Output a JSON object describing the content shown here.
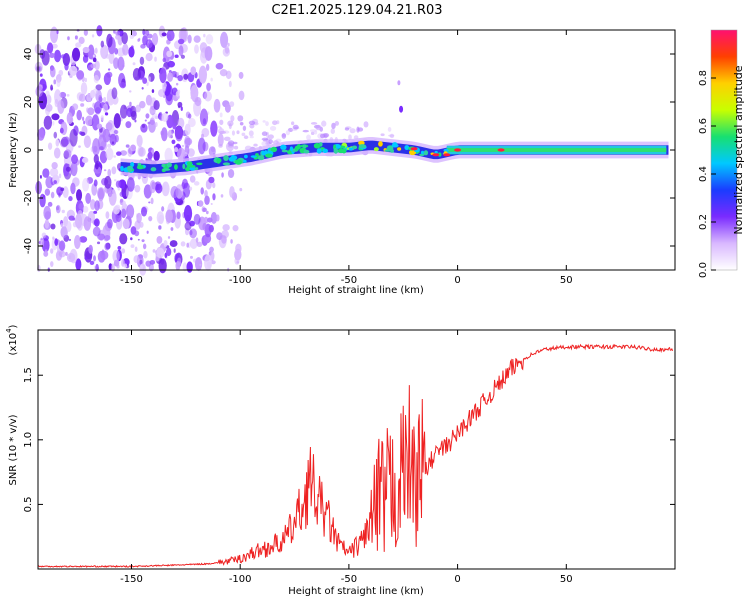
{
  "title": "C2E1.2025.129.04.21.R03",
  "chart_data": [
    {
      "type": "heatmap",
      "xlabel": "Height of straight line (km)",
      "ylabel": "Frequency (Hz)",
      "xlim": [
        -193,
        100
      ],
      "ylim": [
        -50,
        50
      ],
      "x_ticks": [
        -150,
        -100,
        -50,
        0,
        50
      ],
      "x_tick_labels": [
        "-150",
        "-100",
        "-50",
        "0",
        "50"
      ],
      "y_ticks": [
        -40,
        -20,
        0,
        20,
        40
      ],
      "y_tick_labels": [
        "-40",
        "-20",
        "0",
        "20",
        "40"
      ],
      "colorbar": {
        "label": "Normalized spectral amplitude",
        "range": [
          0,
          1
        ],
        "ticks": [
          0.0,
          0.2,
          0.4,
          0.6,
          0.8
        ],
        "tick_labels": [
          "0.0",
          "0.2",
          "0.4",
          "0.6",
          "0.8"
        ],
        "colors": [
          "#ffffff",
          "#d9b8ff",
          "#7a2bff",
          "#1a3cff",
          "#00c8ff",
          "#18e070",
          "#c8ff00",
          "#ffd000",
          "#ff4000",
          "#ff1070"
        ]
      },
      "ridge": {
        "x": [
          -155,
          -140,
          -125,
          -110,
          -95,
          -80,
          -65,
          -50,
          -40,
          -30,
          -20,
          -10,
          0,
          20,
          50,
          97
        ],
        "freq": [
          -7,
          -8,
          -7,
          -5,
          -3,
          0,
          1,
          1,
          2,
          1,
          0,
          -2,
          0,
          0,
          0,
          0
        ]
      },
      "noise_region_km": [
        -193,
        -110
      ]
    },
    {
      "type": "line",
      "xlabel": "Height of straight line (km)",
      "ylabel": "SNR (10 * v/v)",
      "multiplier_label": "(x10",
      "multiplier_exp": "4",
      "multiplier_close": ")",
      "xlim": [
        -193,
        100
      ],
      "ylim": [
        0,
        1.85
      ],
      "x_ticks": [
        -150,
        -100,
        -50,
        0,
        50
      ],
      "x_tick_labels": [
        "-150",
        "-100",
        "-50",
        "0",
        "50"
      ],
      "y_ticks": [
        0.5,
        1.0,
        1.5
      ],
      "y_tick_labels": [
        "0.5",
        "1.0",
        "1.5"
      ],
      "series": [
        {
          "name": "SNR",
          "color": "#ee2222",
          "x": [
            -193,
            -170,
            -150,
            -130,
            -115,
            -105,
            -100,
            -95,
            -90,
            -85,
            -80,
            -75,
            -70,
            -68,
            -65,
            -60,
            -55,
            -50,
            -45,
            -40,
            -35,
            -30,
            -25,
            -22,
            -20,
            -18,
            -15,
            -10,
            -5,
            0,
            5,
            10,
            15,
            20,
            25,
            30,
            35,
            40,
            50,
            60,
            70,
            80,
            90,
            95,
            100
          ],
          "y": [
            0.02,
            0.02,
            0.02,
            0.03,
            0.04,
            0.06,
            0.08,
            0.12,
            0.15,
            0.18,
            0.22,
            0.35,
            0.55,
            0.7,
            0.55,
            0.4,
            0.2,
            0.12,
            0.2,
            0.35,
            0.5,
            0.6,
            0.75,
            0.9,
            0.6,
            0.85,
            0.75,
            0.9,
            0.95,
            1.05,
            1.15,
            1.25,
            1.35,
            1.45,
            1.55,
            1.62,
            1.67,
            1.7,
            1.72,
            1.72,
            1.72,
            1.72,
            1.7,
            1.7,
            1.7
          ]
        }
      ]
    }
  ]
}
